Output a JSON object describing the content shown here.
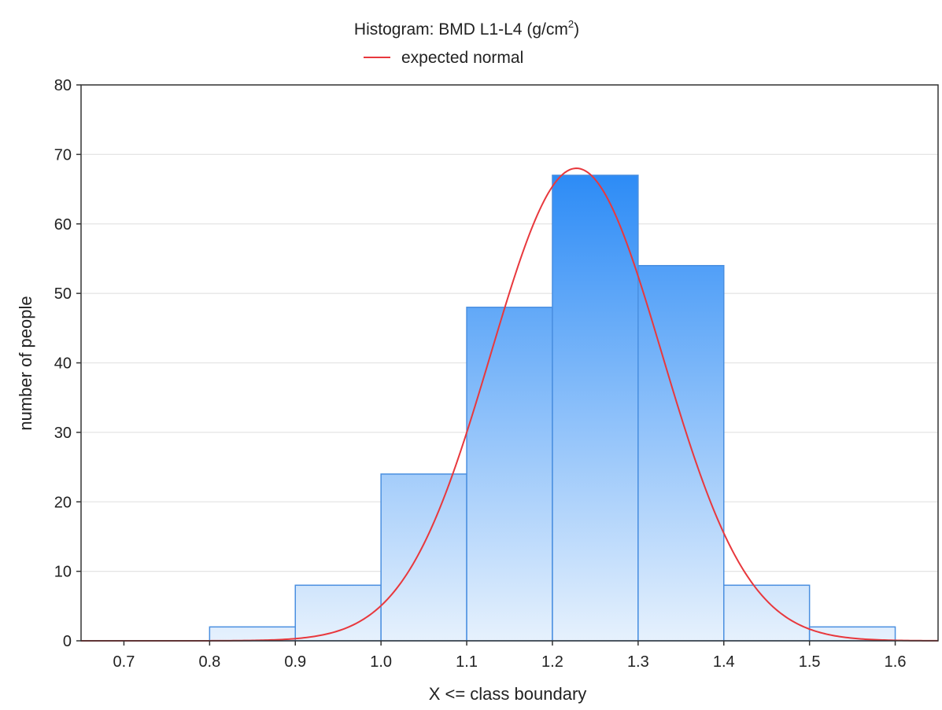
{
  "chart_data": {
    "type": "bar",
    "title_main": "Histogram: BMD L1-L4 (g/cm",
    "title_sup": "2",
    "title_end": ")",
    "legend": {
      "label": "expected normal",
      "placement": "top-center"
    },
    "xlabel": "X <= class boundary",
    "ylabel": "number of people",
    "xlim": [
      0.65,
      1.65
    ],
    "ylim": [
      0,
      80
    ],
    "x_ticks": [
      "0.7",
      "0.8",
      "0.9",
      "1.0",
      "1.1",
      "1.2",
      "1.3",
      "1.4",
      "1.5",
      "1.6"
    ],
    "y_ticks": [
      "0",
      "10",
      "20",
      "30",
      "40",
      "50",
      "60",
      "70",
      "80"
    ],
    "grid": "horizontal",
    "bins": [
      {
        "x0": 0.8,
        "x1": 0.9,
        "value": 2
      },
      {
        "x0": 0.9,
        "x1": 1.0,
        "value": 8
      },
      {
        "x0": 1.0,
        "x1": 1.1,
        "value": 24
      },
      {
        "x0": 1.1,
        "x1": 1.2,
        "value": 48
      },
      {
        "x0": 1.2,
        "x1": 1.3,
        "value": 67
      },
      {
        "x0": 1.3,
        "x1": 1.4,
        "value": 54
      },
      {
        "x0": 1.4,
        "x1": 1.5,
        "value": 8
      },
      {
        "x0": 1.5,
        "x1": 1.6,
        "value": 2
      }
    ],
    "normal_curve": {
      "mean": 1.228,
      "sd": 0.1,
      "peak": 68
    },
    "colors": {
      "bar_top": "#2a8af6",
      "bar_bottom": "#e6f1fd",
      "bar_stroke": "#4a8fe0",
      "curve": "#e8383d",
      "grid": "#e4e4e4",
      "axis": "#333333"
    }
  }
}
